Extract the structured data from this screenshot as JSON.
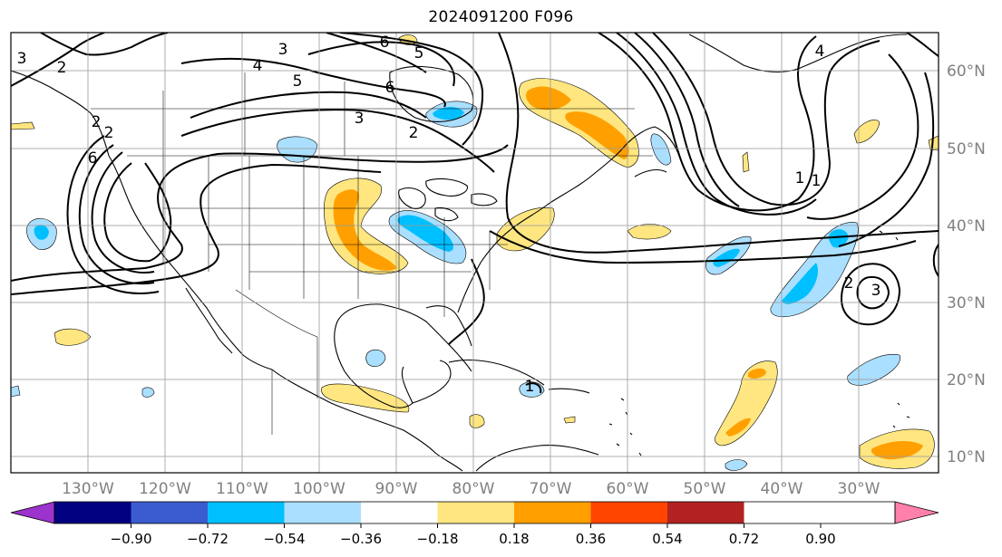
{
  "title": "2024091200 F096",
  "longitude_labels": [
    "130°W",
    "120°W",
    "110°W",
    "100°W",
    "90°W",
    "80°W",
    "70°W",
    "60°W",
    "50°W",
    "40°W",
    "30°W"
  ],
  "latitude_labels": [
    "60°N",
    "50°N",
    "40°N",
    "30°N",
    "20°N",
    "10°N"
  ],
  "colorbar": {
    "tick_labels": [
      "−0.90",
      "−0.72",
      "−0.54",
      "−0.36",
      "−0.18",
      "0.18",
      "0.36",
      "0.54",
      "0.72",
      "0.90"
    ],
    "colors": [
      "#9b33cc",
      "#000080",
      "#3b5bd0",
      "#00bfff",
      "#aadfff",
      "#ffffff",
      "#ffe680",
      "#ffa000",
      "#ff4500",
      "#b22222",
      "#ff80aa"
    ]
  },
  "contour_labels": [
    "2",
    "3",
    "4",
    "5",
    "6",
    "6",
    "5",
    "3",
    "2",
    "2",
    "2",
    "3",
    "4",
    "6",
    "1",
    "1",
    "3",
    "2",
    "1",
    "2"
  ],
  "map_features": {
    "negative_shading": "#aadfff",
    "negative_core": "#00bfff",
    "positive_shading": "#ffe680",
    "positive_core": "#ffa000"
  }
}
